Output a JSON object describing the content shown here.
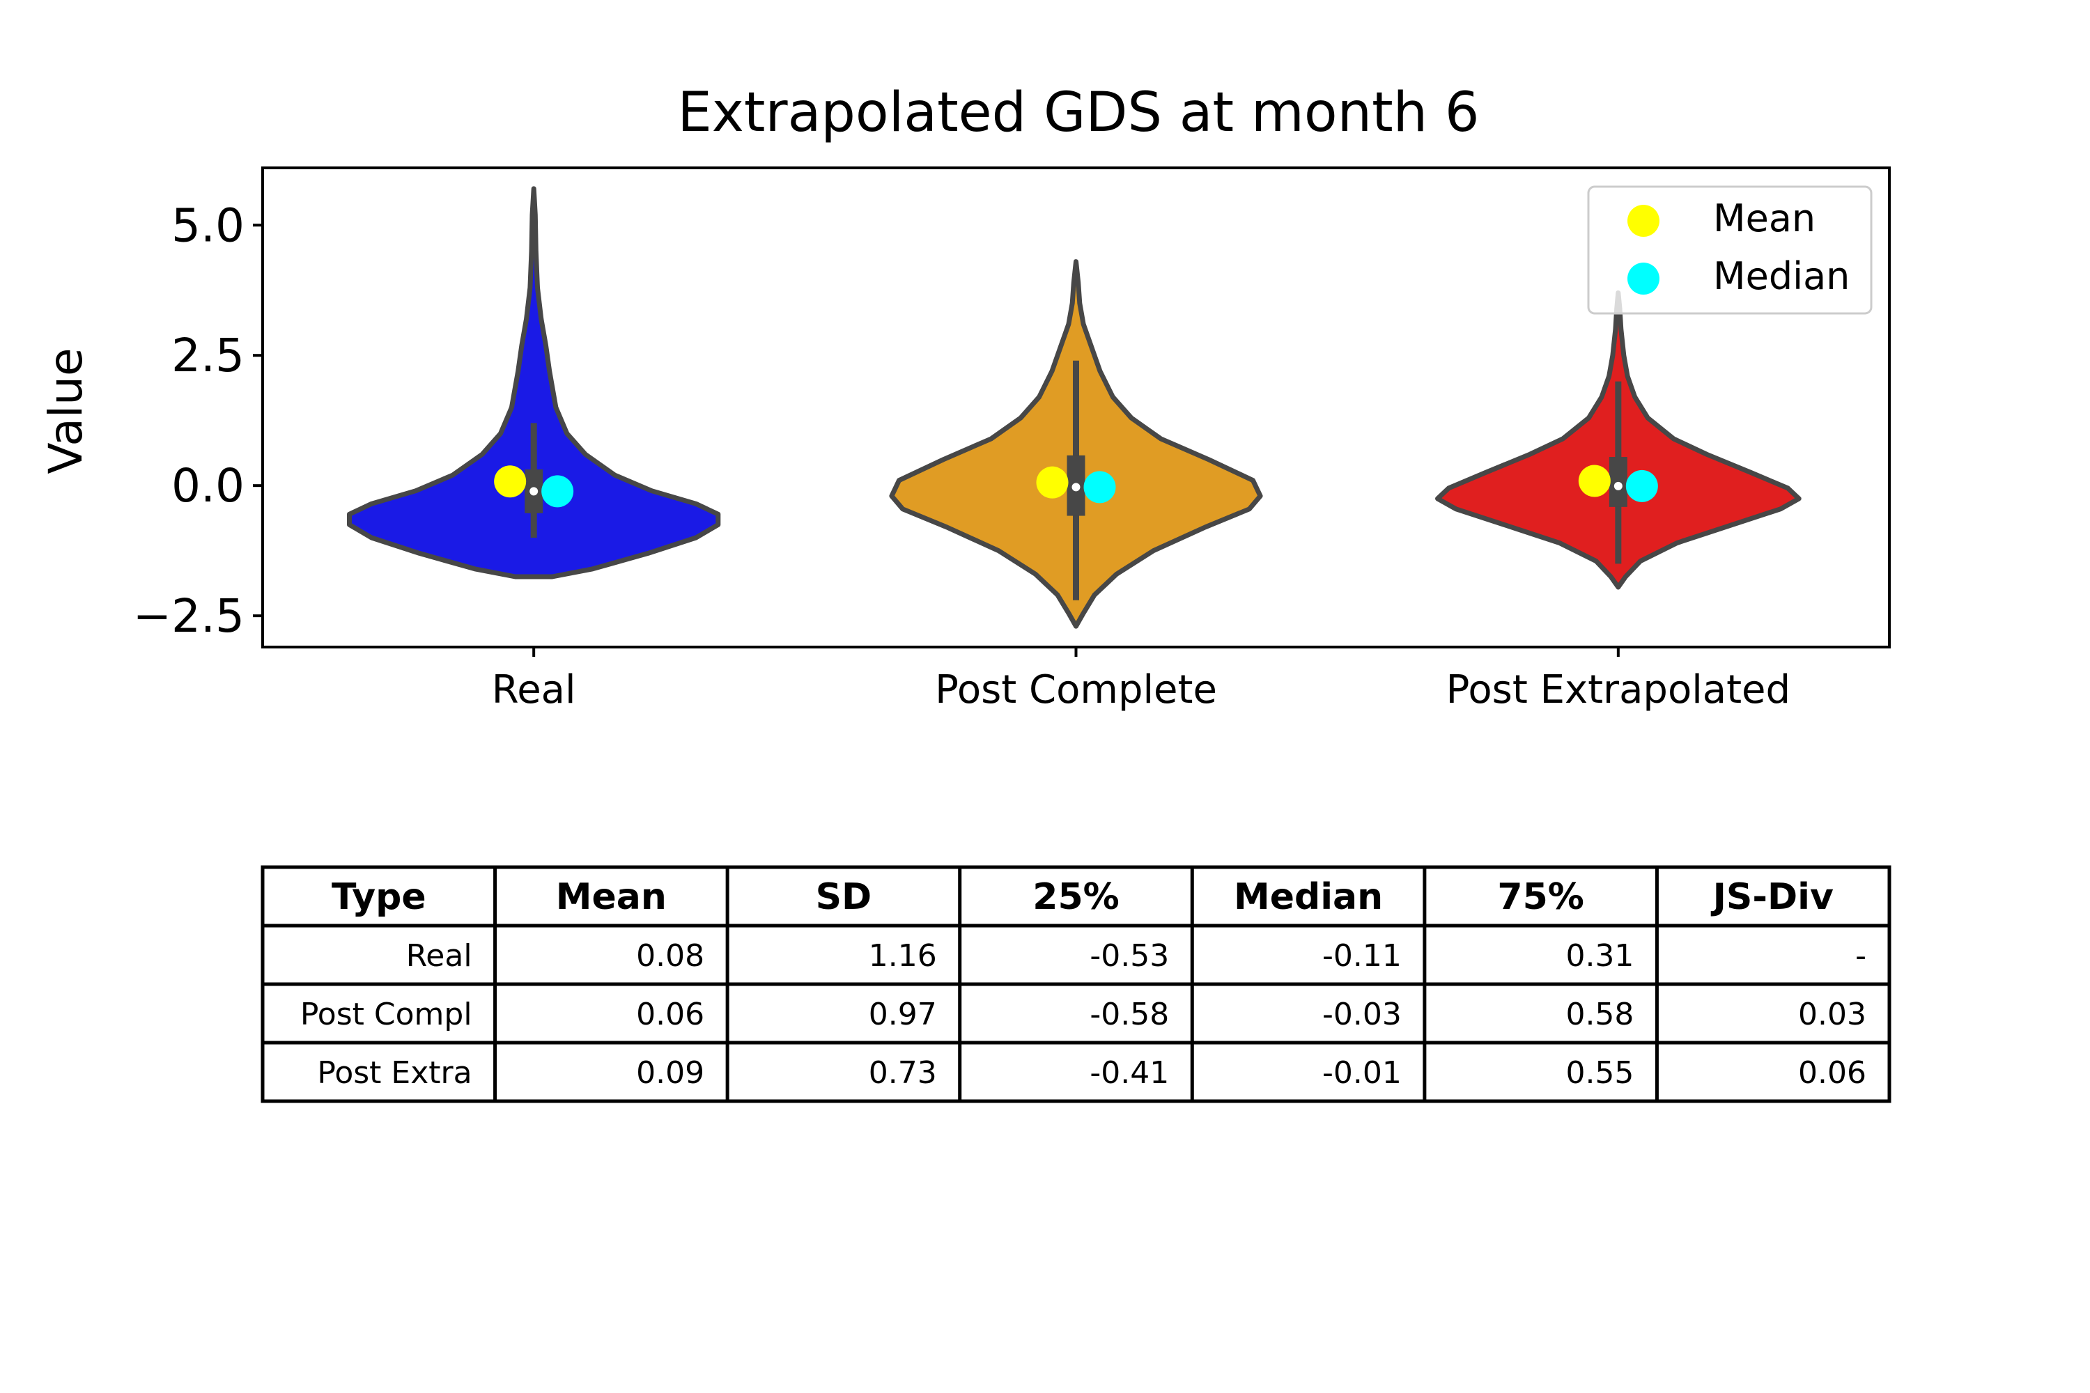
{
  "chart_data": {
    "type": "violin",
    "title": "Extrapolated GDS at month 6",
    "xlabel": "",
    "ylabel": "Value",
    "ylim": [
      -3.1,
      6.1
    ],
    "yticks": [
      -2.5,
      0.0,
      2.5,
      5.0
    ],
    "ytick_labels": [
      "−2.5",
      "0.0",
      "2.5",
      "5.0"
    ],
    "grid": false,
    "legend": {
      "position": "top-right",
      "entries": [
        {
          "label": "Mean",
          "color": "#ffff00"
        },
        {
          "label": "Median",
          "color": "#00ffff"
        }
      ]
    },
    "categories": [
      "Real",
      "Post Complete",
      "Post Extrapolated"
    ],
    "series": [
      {
        "category": "Real",
        "color": "#1a1ae6",
        "mean": 0.08,
        "median": -0.11,
        "q1": -0.53,
        "q3": 0.31,
        "whisker_low": -1.0,
        "whisker_high": 1.2,
        "range": [
          -1.75,
          5.7
        ],
        "density_profile": [
          [
            -1.75,
            0.1
          ],
          [
            -1.6,
            0.32
          ],
          [
            -1.3,
            0.62
          ],
          [
            -1.0,
            0.88
          ],
          [
            -0.75,
            1.0
          ],
          [
            -0.55,
            1.0
          ],
          [
            -0.35,
            0.88
          ],
          [
            -0.1,
            0.64
          ],
          [
            0.2,
            0.44
          ],
          [
            0.6,
            0.28
          ],
          [
            1.0,
            0.18
          ],
          [
            1.5,
            0.12
          ],
          [
            2.2,
            0.085
          ],
          [
            2.7,
            0.065
          ],
          [
            3.2,
            0.04
          ],
          [
            3.8,
            0.02
          ],
          [
            4.5,
            0.012
          ],
          [
            5.2,
            0.008
          ],
          [
            5.7,
            0.0
          ]
        ]
      },
      {
        "category": "Post Complete",
        "color": "#e09c24",
        "mean": 0.06,
        "median": -0.03,
        "q1": -0.58,
        "q3": 0.58,
        "whisker_low": -2.2,
        "whisker_high": 2.4,
        "range": [
          -2.7,
          4.3
        ],
        "density_profile": [
          [
            -2.7,
            0.0
          ],
          [
            -2.45,
            0.04
          ],
          [
            -2.1,
            0.1
          ],
          [
            -1.7,
            0.22
          ],
          [
            -1.25,
            0.42
          ],
          [
            -0.8,
            0.7
          ],
          [
            -0.45,
            0.94
          ],
          [
            -0.2,
            1.0
          ],
          [
            0.1,
            0.96
          ],
          [
            0.5,
            0.72
          ],
          [
            0.9,
            0.46
          ],
          [
            1.3,
            0.3
          ],
          [
            1.7,
            0.2
          ],
          [
            2.2,
            0.13
          ],
          [
            2.7,
            0.08
          ],
          [
            3.1,
            0.04
          ],
          [
            3.5,
            0.02
          ],
          [
            3.9,
            0.012
          ],
          [
            4.3,
            0.0
          ]
        ]
      },
      {
        "category": "Post Extrapolated",
        "color": "#e01f1f",
        "mean": 0.09,
        "median": -0.01,
        "q1": -0.41,
        "q3": 0.55,
        "whisker_low": -1.5,
        "whisker_high": 2.0,
        "range": [
          -1.95,
          3.7
        ],
        "density_profile": [
          [
            -1.95,
            0.0
          ],
          [
            -1.75,
            0.04
          ],
          [
            -1.45,
            0.12
          ],
          [
            -1.1,
            0.32
          ],
          [
            -0.75,
            0.62
          ],
          [
            -0.45,
            0.88
          ],
          [
            -0.25,
            0.98
          ],
          [
            -0.05,
            0.92
          ],
          [
            0.25,
            0.72
          ],
          [
            0.6,
            0.48
          ],
          [
            0.9,
            0.3
          ],
          [
            1.3,
            0.16
          ],
          [
            1.7,
            0.09
          ],
          [
            2.1,
            0.05
          ],
          [
            2.5,
            0.03
          ],
          [
            3.0,
            0.015
          ],
          [
            3.4,
            0.008
          ],
          [
            3.7,
            0.0
          ]
        ]
      }
    ],
    "table": {
      "headers": [
        "Type",
        "Mean",
        "SD",
        "25%",
        "Median",
        "75%",
        "JS-Div"
      ],
      "rows": [
        [
          "Real",
          "0.08",
          "1.16",
          "-0.53",
          "-0.11",
          "0.31",
          "-"
        ],
        [
          "Post Compl",
          "0.06",
          "0.97",
          "-0.58",
          "-0.03",
          "0.58",
          "0.03"
        ],
        [
          "Post Extra",
          "0.09",
          "0.73",
          "-0.41",
          "-0.01",
          "0.55",
          "0.06"
        ]
      ]
    }
  }
}
